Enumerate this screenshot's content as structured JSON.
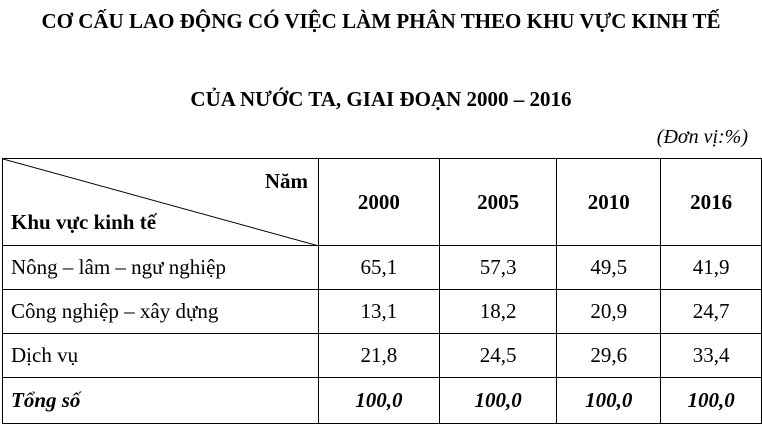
{
  "title": {
    "lines": [
      "CƠ CẤU LAO ĐỘNG CÓ VIỆC LÀM PHÂN THEO KHU VỰC KINH TẾ",
      "CỦA NƯỚC TA, GIAI ĐOẠN 2000 – 2016"
    ],
    "unit": "(Đơn vị:%)"
  },
  "table": {
    "corner": {
      "top": "Năm",
      "bottom": "Khu vực kinh tế"
    },
    "columns": [
      "2000",
      "2005",
      "2010",
      "2016"
    ],
    "rows": [
      [
        "Nông – lâm – ngư nghiệp",
        "65,1",
        "57,3",
        "49,5",
        "41,9"
      ],
      [
        "Công nghiệp – xây dựng",
        "13,1",
        "18,2",
        "20,9",
        "24,7"
      ],
      [
        "Dịch vụ",
        "21,8",
        "24,5",
        "29,6",
        "33,4"
      ],
      [
        "Tổng số",
        "100,0",
        "100,0",
        "100,0",
        "100,0"
      ]
    ]
  }
}
